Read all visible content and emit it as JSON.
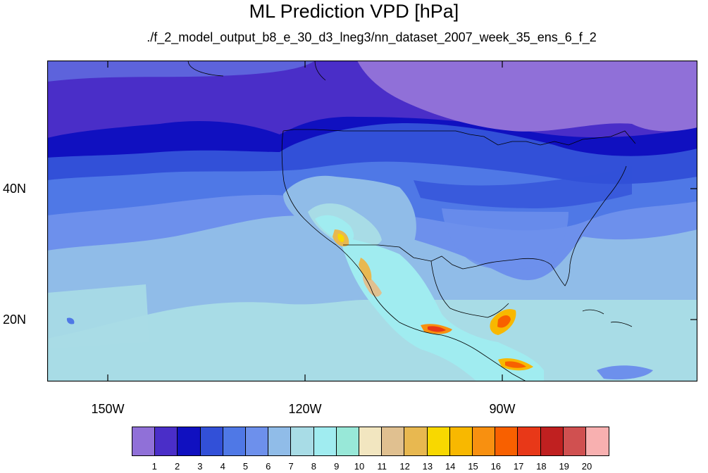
{
  "title": "ML Prediction VPD [hPa]",
  "subtitle": "./f_2_model_output_b8_e_30_d3_lneg3/nn_dataset_2007_week_35_ens_6_f_2",
  "map": {
    "lat_labels": [
      "40N",
      "20N"
    ],
    "lon_labels": [
      "150W",
      "120W",
      "90W"
    ]
  },
  "colorbar": {
    "colors": [
      "#9070d8",
      "#4a2ec8",
      "#1010c0",
      "#3250d8",
      "#4f78e6",
      "#6d90ec",
      "#90bce8",
      "#a8dce6",
      "#a0ecf0",
      "#98e8d8",
      "#f2e6c0",
      "#e0c090",
      "#e8b850",
      "#f8d800",
      "#f8b800",
      "#f89010",
      "#f86000",
      "#e83818",
      "#c02020",
      "#d05050",
      "#f8b0b0"
    ],
    "labels": [
      "1",
      "2",
      "3",
      "4",
      "5",
      "6",
      "7",
      "8",
      "9",
      "10",
      "11",
      "12",
      "13",
      "14",
      "15",
      "16",
      "17",
      "18",
      "19",
      "20"
    ]
  }
}
